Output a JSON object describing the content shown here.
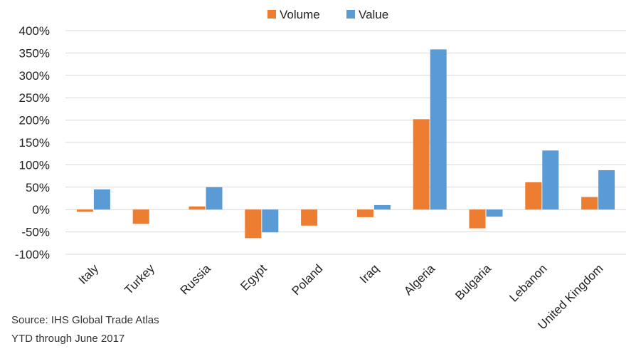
{
  "colors": {
    "volume": "#ED7D31",
    "value": "#5B9BD5",
    "grid": "#D9D9D9",
    "axis_text": "#222222"
  },
  "notes": {
    "source": "Source: IHS Global Trade Atlas",
    "period": "YTD through June 2017"
  },
  "chart_data": {
    "type": "bar",
    "title": "",
    "xlabel": "",
    "ylabel": "",
    "ylim": [
      -100,
      400
    ],
    "yticks": [
      400,
      350,
      300,
      250,
      200,
      150,
      100,
      50,
      0,
      -50,
      -100
    ],
    "ytick_labels": [
      "400%",
      "350%",
      "300%",
      "250%",
      "200%",
      "150%",
      "100%",
      "50%",
      "0%",
      "-50%",
      "-100%"
    ],
    "grid": true,
    "legend_position": "top",
    "categories": [
      "Italy",
      "Turkey",
      "Russia",
      "Egypt",
      "Poland",
      "Iraq",
      "Algeria",
      "Bulgaria",
      "Lebanon",
      "United Kingdom"
    ],
    "series": [
      {
        "name": "Volume",
        "color": "#ED7D31",
        "values": [
          -5,
          -32,
          7,
          -64,
          -36,
          -17,
          202,
          -42,
          61,
          28
        ]
      },
      {
        "name": "Value",
        "color": "#5B9BD5",
        "values": [
          45,
          0,
          50,
          -51,
          0,
          10,
          358,
          -16,
          132,
          88
        ]
      }
    ]
  }
}
